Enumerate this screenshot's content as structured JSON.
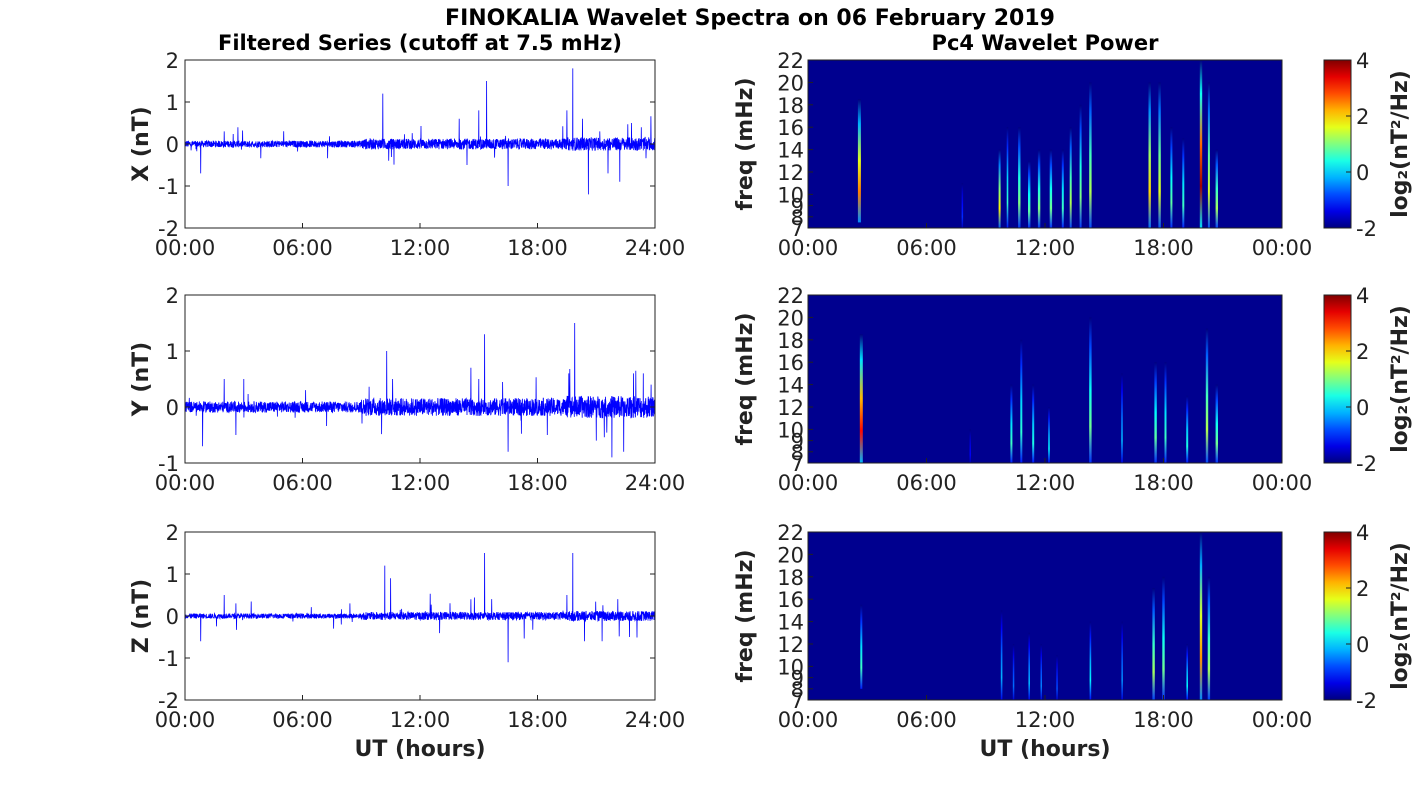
{
  "title": "FINOKALIA Wavelet Spectra on 06 February 2019",
  "left_title": "Filtered Series (cutoff at 7.5 mHz)",
  "right_title": "Pc4 Wavelet Power",
  "xlabel": "UT (hours)",
  "colors": {
    "trace": "#0000ff",
    "background_power": "#00008f"
  },
  "chart_data": [
    {
      "type": "line",
      "component": "X",
      "ylabel": "X (nT)",
      "xlim": [
        0,
        24
      ],
      "ylim": [
        -2,
        2
      ],
      "yticks": [
        "-2",
        "-1",
        "0",
        "1",
        "2"
      ],
      "xticks": [
        "00:00",
        "06:00",
        "12:00",
        "18:00",
        "24:00"
      ],
      "noise_amp": 0.08,
      "spikes": [
        [
          0.8,
          -0.7
        ],
        [
          2.0,
          0.3
        ],
        [
          2.7,
          0.4
        ],
        [
          10.1,
          1.2
        ],
        [
          10.4,
          -0.4
        ],
        [
          14.0,
          0.6
        ],
        [
          14.4,
          -0.5
        ],
        [
          15.0,
          0.8
        ],
        [
          15.4,
          1.5
        ],
        [
          16.5,
          -1.0
        ],
        [
          19.5,
          0.8
        ],
        [
          19.8,
          1.8
        ],
        [
          20.3,
          0.6
        ],
        [
          20.6,
          -1.2
        ],
        [
          21.6,
          -0.7
        ],
        [
          22.2,
          -0.9
        ],
        [
          22.8,
          0.5
        ],
        [
          23.3,
          0.4
        ]
      ]
    },
    {
      "type": "line",
      "component": "Y",
      "ylabel": "Y (nT)",
      "xlim": [
        0,
        24
      ],
      "ylim": [
        -1,
        2
      ],
      "yticks": [
        "-1",
        "0",
        "1",
        "2"
      ],
      "xticks": [
        "00:00",
        "06:00",
        "12:00",
        "18:00",
        "24:00"
      ],
      "noise_amp": 0.1,
      "spikes": [
        [
          0.9,
          -0.7
        ],
        [
          2.0,
          0.5
        ],
        [
          2.6,
          -0.5
        ],
        [
          3.0,
          0.5
        ],
        [
          10.3,
          1.0
        ],
        [
          10.6,
          0.5
        ],
        [
          14.6,
          0.7
        ],
        [
          15.0,
          0.5
        ],
        [
          15.3,
          1.3
        ],
        [
          16.5,
          -0.8
        ],
        [
          18.5,
          -0.5
        ],
        [
          19.6,
          0.6
        ],
        [
          19.9,
          1.5
        ],
        [
          21.0,
          -0.6
        ],
        [
          21.8,
          -0.9
        ],
        [
          22.4,
          -0.8
        ],
        [
          22.9,
          0.6
        ],
        [
          23.4,
          0.6
        ],
        [
          23.8,
          0.4
        ]
      ]
    },
    {
      "type": "line",
      "component": "Z",
      "ylabel": "Z (nT)",
      "xlim": [
        0,
        24
      ],
      "ylim": [
        -2,
        2
      ],
      "yticks": [
        "-2",
        "-1",
        "0",
        "1",
        "2"
      ],
      "xticks": [
        "00:00",
        "06:00",
        "12:00",
        "18:00",
        "24:00"
      ],
      "noise_amp": 0.06,
      "spikes": [
        [
          0.8,
          -0.6
        ],
        [
          2.0,
          0.5
        ],
        [
          2.6,
          0.3
        ],
        [
          10.2,
          1.2
        ],
        [
          10.5,
          0.9
        ],
        [
          14.6,
          0.4
        ],
        [
          15.3,
          1.5
        ],
        [
          16.5,
          -1.1
        ],
        [
          19.5,
          0.5
        ],
        [
          19.8,
          1.5
        ],
        [
          20.4,
          -0.6
        ],
        [
          21.3,
          -0.6
        ],
        [
          22.1,
          -0.8
        ],
        [
          22.7,
          -0.5
        ]
      ]
    },
    {
      "type": "heatmap",
      "component": "X",
      "ylabel": "freq (mHz)",
      "xlim": [
        0,
        24
      ],
      "ylim": [
        7,
        22
      ],
      "xticks": [
        "00:00",
        "06:00",
        "12:00",
        "18:00",
        "00:00"
      ],
      "yticks": [
        "7",
        "8",
        "9",
        "10",
        "12",
        "14",
        "16",
        "18",
        "20",
        "22"
      ],
      "colorbar": {
        "label": "log₂(nT²/Hz)",
        "range": [
          -2,
          4
        ],
        "ticks": [
          "-2",
          "0",
          "2",
          "4"
        ]
      },
      "events": [
        [
          2.6,
          7.5,
          18.5,
          2.5,
          0.15
        ],
        [
          7.8,
          7,
          11,
          -1.0,
          0.05
        ],
        [
          9.7,
          7,
          14,
          1.8,
          0.1
        ],
        [
          10.1,
          7,
          16,
          0.5,
          0.08
        ],
        [
          10.7,
          7,
          16,
          1.0,
          0.12
        ],
        [
          11.2,
          7,
          13,
          0.8,
          0.12
        ],
        [
          11.7,
          7,
          14,
          1.0,
          0.12
        ],
        [
          12.3,
          7,
          14,
          0.9,
          0.12
        ],
        [
          12.9,
          7,
          14,
          0.6,
          0.1
        ],
        [
          13.3,
          7,
          16,
          1.3,
          0.1
        ],
        [
          13.8,
          7,
          18,
          1.0,
          0.1
        ],
        [
          14.3,
          7,
          20,
          1.3,
          0.12
        ],
        [
          17.3,
          7,
          20,
          2.0,
          0.12
        ],
        [
          17.8,
          7,
          20,
          1.6,
          0.12
        ],
        [
          18.4,
          7,
          16,
          0.8,
          0.1
        ],
        [
          19.0,
          7,
          15,
          0.6,
          0.1
        ],
        [
          19.9,
          7,
          22,
          3.8,
          0.12
        ],
        [
          20.3,
          7,
          20,
          1.5,
          0.1
        ],
        [
          20.7,
          7,
          14,
          1.2,
          0.12
        ]
      ]
    },
    {
      "type": "heatmap",
      "component": "Y",
      "ylabel": "freq (mHz)",
      "xlim": [
        0,
        24
      ],
      "ylim": [
        7,
        22
      ],
      "xticks": [
        "00:00",
        "06:00",
        "12:00",
        "18:00",
        "00:00"
      ],
      "yticks": [
        "7",
        "8",
        "9",
        "10",
        "12",
        "14",
        "16",
        "18",
        "20",
        "22"
      ],
      "colorbar": {
        "label": "log₂(nT²/Hz)",
        "range": [
          -2,
          4
        ],
        "ticks": [
          "-2",
          "0",
          "2",
          "4"
        ]
      },
      "events": [
        [
          2.7,
          7,
          18.5,
          3.2,
          0.15
        ],
        [
          8.2,
          7,
          10,
          -1.3,
          0.05
        ],
        [
          10.3,
          7,
          14,
          0.6,
          0.1
        ],
        [
          10.8,
          7,
          18,
          0.5,
          0.1
        ],
        [
          11.4,
          7,
          14,
          0.4,
          0.1
        ],
        [
          12.2,
          7,
          12,
          0.2,
          0.08
        ],
        [
          14.3,
          7,
          20,
          0.9,
          0.12
        ],
        [
          15.9,
          7,
          15,
          -0.2,
          0.08
        ],
        [
          17.6,
          7,
          16,
          0.8,
          0.12
        ],
        [
          18.1,
          7,
          16,
          0.6,
          0.1
        ],
        [
          19.2,
          7,
          13,
          0.4,
          0.1
        ],
        [
          20.2,
          7,
          19,
          1.3,
          0.12
        ],
        [
          20.7,
          7,
          14,
          0.9,
          0.12
        ]
      ]
    },
    {
      "type": "heatmap",
      "component": "Z",
      "ylabel": "freq (mHz)",
      "xlim": [
        0,
        24
      ],
      "ylim": [
        7,
        22
      ],
      "xticks": [
        "00:00",
        "06:00",
        "12:00",
        "18:00",
        "00:00"
      ],
      "yticks": [
        "7",
        "8",
        "9",
        "10",
        "12",
        "14",
        "16",
        "18",
        "20",
        "22"
      ],
      "colorbar": {
        "label": "log₂(nT²/Hz)",
        "range": [
          -2,
          4
        ],
        "ticks": [
          "-2",
          "0",
          "2",
          "4"
        ]
      },
      "events": [
        [
          2.7,
          8,
          15.5,
          0.6,
          0.1
        ],
        [
          9.8,
          7,
          15,
          -0.2,
          0.08
        ],
        [
          10.4,
          7,
          12,
          -0.6,
          0.06
        ],
        [
          11.2,
          7,
          13,
          -0.2,
          0.08
        ],
        [
          11.8,
          7,
          12,
          -0.5,
          0.06
        ],
        [
          12.6,
          7,
          11,
          -0.8,
          0.06
        ],
        [
          14.3,
          7,
          14,
          0.2,
          0.08
        ],
        [
          15.9,
          7,
          14,
          -0.4,
          0.06
        ],
        [
          17.5,
          7,
          17,
          1.2,
          0.12
        ],
        [
          18.0,
          7,
          18,
          0.9,
          0.12
        ],
        [
          19.2,
          7,
          12,
          0.2,
          0.08
        ],
        [
          19.9,
          7,
          22,
          2.4,
          0.12
        ],
        [
          20.3,
          7,
          18,
          1.2,
          0.12
        ]
      ]
    }
  ]
}
